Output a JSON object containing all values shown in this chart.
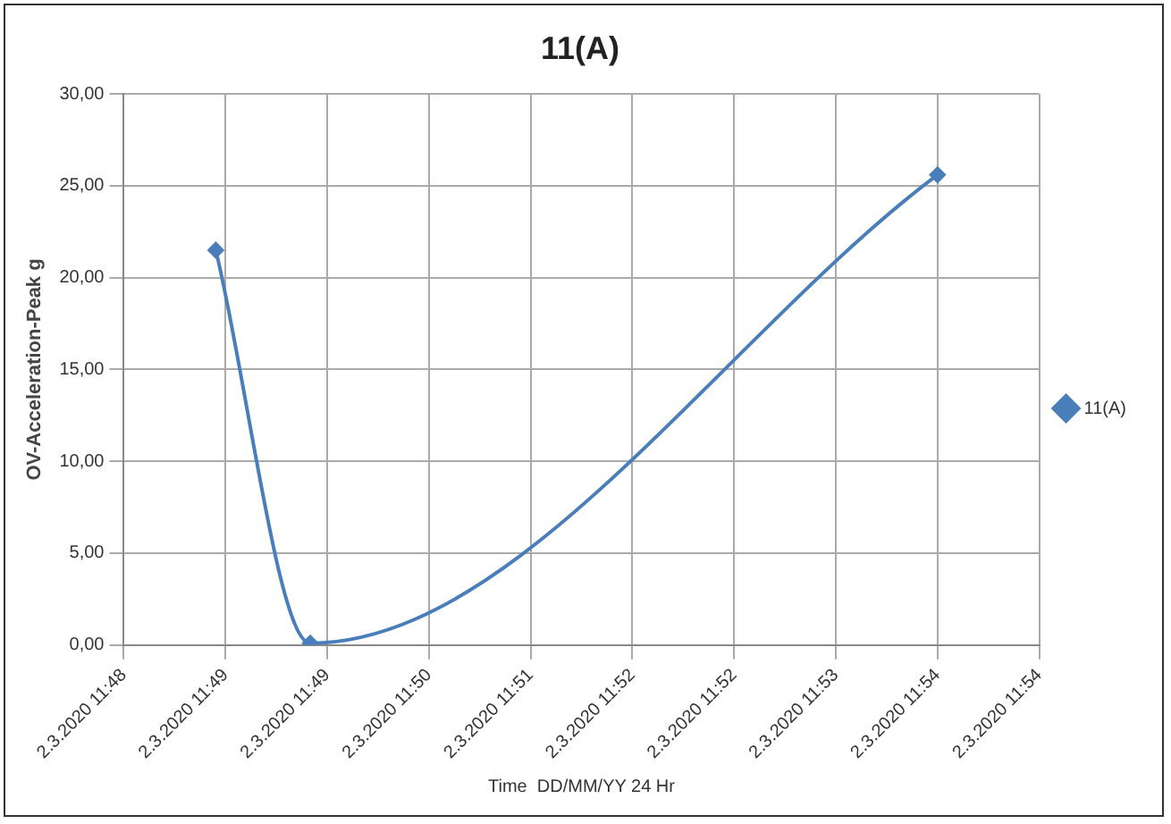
{
  "chart_data": {
    "type": "line",
    "title": "11(A)",
    "xlabel": "Time  DD/MM/YY 24 Hr",
    "ylabel": "OV-Acceleration-Peak g",
    "x": [
      "2020-03-02T11:48:38",
      "2020-03-02T11:49:17",
      "2020-03-02T11:53:36"
    ],
    "series": [
      {
        "name": "11(A)",
        "color": "#4a7ebb",
        "values": [
          21.5,
          0.1,
          25.6
        ]
      }
    ],
    "xlim": [
      "2020-03-02T11:48:00",
      "2020-03-02T11:54:18"
    ],
    "xticks": [
      {
        "value": "2020-03-02T11:48:00",
        "label": "2.3.2020 11:48"
      },
      {
        "value": "2020-03-02T11:48:42",
        "label": "2.3.2020 11:49"
      },
      {
        "value": "2020-03-02T11:49:24",
        "label": "2.3.2020 11:49"
      },
      {
        "value": "2020-03-02T11:50:06",
        "label": "2.3.2020 11:50"
      },
      {
        "value": "2020-03-02T11:50:48",
        "label": "2.3.2020 11:51"
      },
      {
        "value": "2020-03-02T11:51:30",
        "label": "2.3.2020 11:52"
      },
      {
        "value": "2020-03-02T11:52:12",
        "label": "2.3.2020 11:52"
      },
      {
        "value": "2020-03-02T11:52:54",
        "label": "2.3.2020 11:53"
      },
      {
        "value": "2020-03-02T11:53:36",
        "label": "2.3.2020 11:54"
      },
      {
        "value": "2020-03-02T11:54:18",
        "label": "2.3.2020 11:54"
      }
    ],
    "ylim": [
      0,
      30
    ],
    "yticks": [
      {
        "value": 0,
        "label": "0,00"
      },
      {
        "value": 5,
        "label": "5,00"
      },
      {
        "value": 10,
        "label": "10,00"
      },
      {
        "value": 15,
        "label": "15,00"
      },
      {
        "value": 20,
        "label": "20,00"
      },
      {
        "value": 25,
        "label": "25,00"
      },
      {
        "value": 30,
        "label": "30,00"
      }
    ],
    "grid": true,
    "legend": "right",
    "marker": "diamond",
    "line_style": "solid"
  }
}
